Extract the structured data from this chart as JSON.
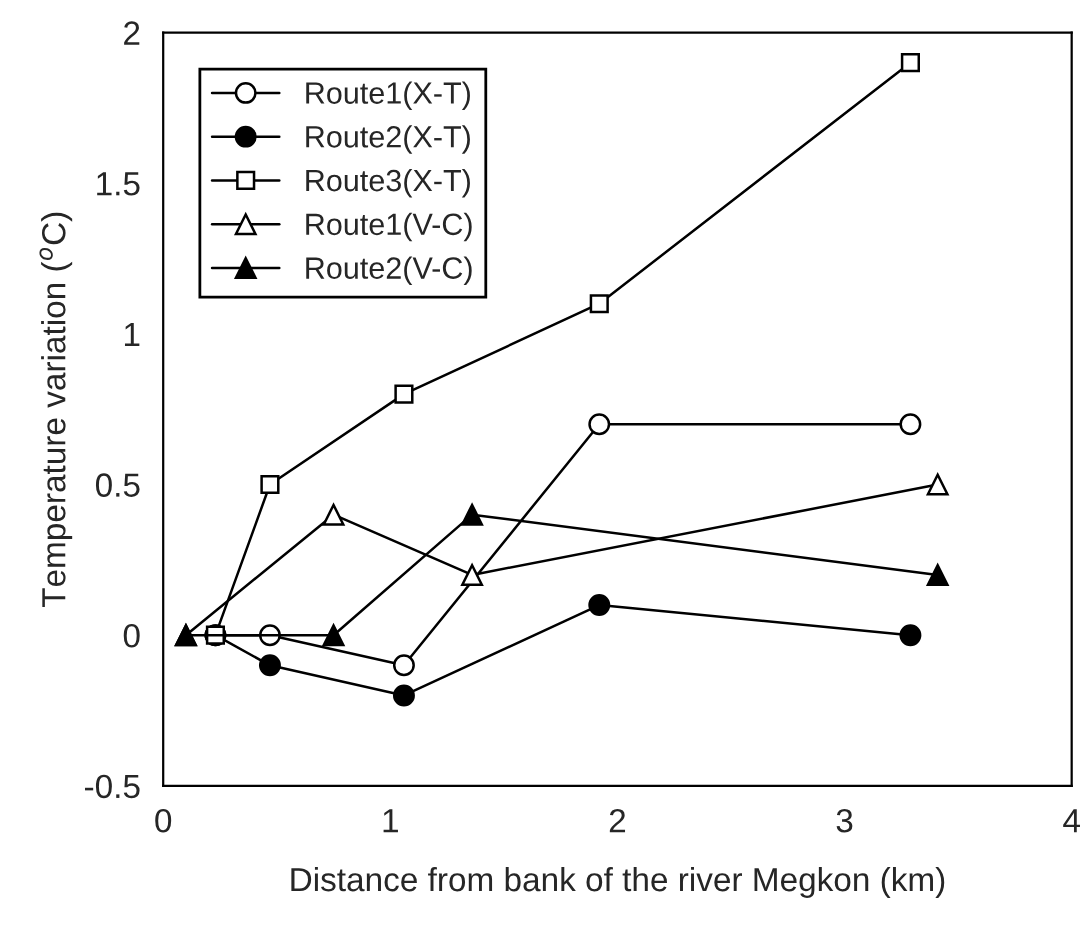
{
  "chart_data": {
    "type": "line",
    "xlabel": "Distance from bank of the river Megkon (km)",
    "ylabel": "Temperature variation ($^{o}$C)",
    "xlim": [
      0,
      4
    ],
    "xticks": [
      0,
      1,
      2,
      3,
      4
    ],
    "ylim": [
      -0.5,
      2
    ],
    "yticks": [
      -0.5,
      0,
      0.5,
      1,
      1.5,
      2
    ],
    "grid": false,
    "legend": "top left",
    "line_style": "solid",
    "series": [
      {
        "name": "Route1(X-T)",
        "color": "#ffffff",
        "marker": "circle",
        "x": [
          0.23,
          0.47,
          1.06,
          1.92,
          3.29
        ],
        "values": [
          0,
          0,
          -0.1,
          0.7,
          0.7
        ]
      },
      {
        "name": "Route2(X-T)",
        "color": "#000000",
        "marker": "circle",
        "x": [
          0.23,
          0.47,
          1.06,
          1.92,
          3.29
        ],
        "values": [
          0,
          -0.1,
          -0.2,
          0.1,
          0
        ]
      },
      {
        "name": "Route3(X-T)",
        "color": "#ffffff",
        "marker": "square",
        "x": [
          0.23,
          0.47,
          1.06,
          1.92,
          3.29
        ],
        "values": [
          0,
          0.5,
          0.8,
          1.1,
          1.9
        ]
      },
      {
        "name": "Route1(V-C)",
        "color": "#ffffff",
        "marker": "triangle",
        "x": [
          0.1,
          0.75,
          1.36,
          3.41
        ],
        "values": [
          0,
          0.4,
          0.2,
          0.5
        ]
      },
      {
        "name": "Route2(V-C)",
        "color": "#000000",
        "marker": "triangle",
        "x": [
          0.1,
          0.75,
          1.36,
          3.41
        ],
        "values": [
          0,
          0,
          0.4,
          0.2
        ]
      }
    ]
  }
}
